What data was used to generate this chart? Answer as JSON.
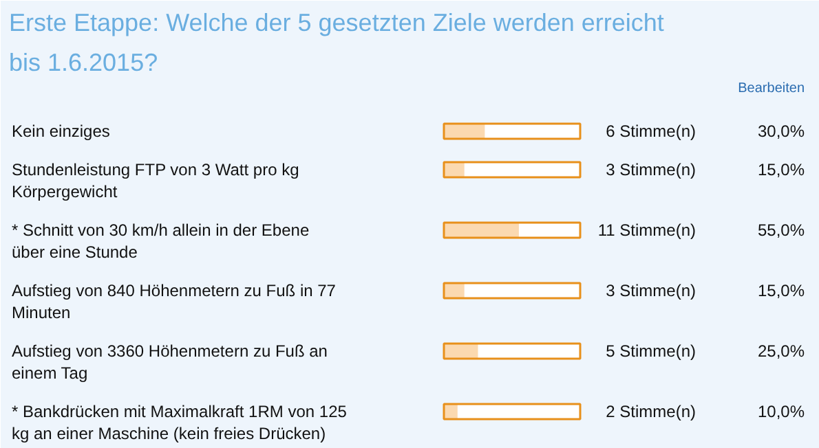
{
  "chart_data": {
    "type": "bar",
    "orientation": "horizontal",
    "title": "Erste Etappe: Welche der 5 gesetzten Ziele werden erreicht bis 1.6.2015?",
    "categories": [
      "Kein einziges",
      "Stundenleistung FTP von 3 Watt pro kg Körpergewicht",
      "* Schnitt von 30 km/h allein in der Ebene über eine Stunde",
      "Aufstieg von 840 Höhenmetern zu Fuß in 77 Minuten",
      "Aufstieg von 3360 Höhenmetern zu Fuß an einem Tag",
      "* Bankdrücken mit Maximalkraft 1RM von 125 kg an einer Maschine (kein freies Drücken)"
    ],
    "values": [
      30,
      15,
      55,
      15,
      25,
      10
    ],
    "value_labels": [
      "30,0%",
      "15,0%",
      "55,0%",
      "15,0%",
      "25,0%",
      "10,0%"
    ],
    "color": "#fbd9b0",
    "xlim": [
      0,
      100
    ],
    "tick_labels": false,
    "grid": false,
    "annotations": [
      "Bearbeiten",
      "6 Stimme(n)",
      "3 Stimme(n)",
      "11 Stimme(n)",
      "3 Stimme(n)",
      "5 Stimme(n)",
      "2 Stimme(n)"
    ]
  }
}
